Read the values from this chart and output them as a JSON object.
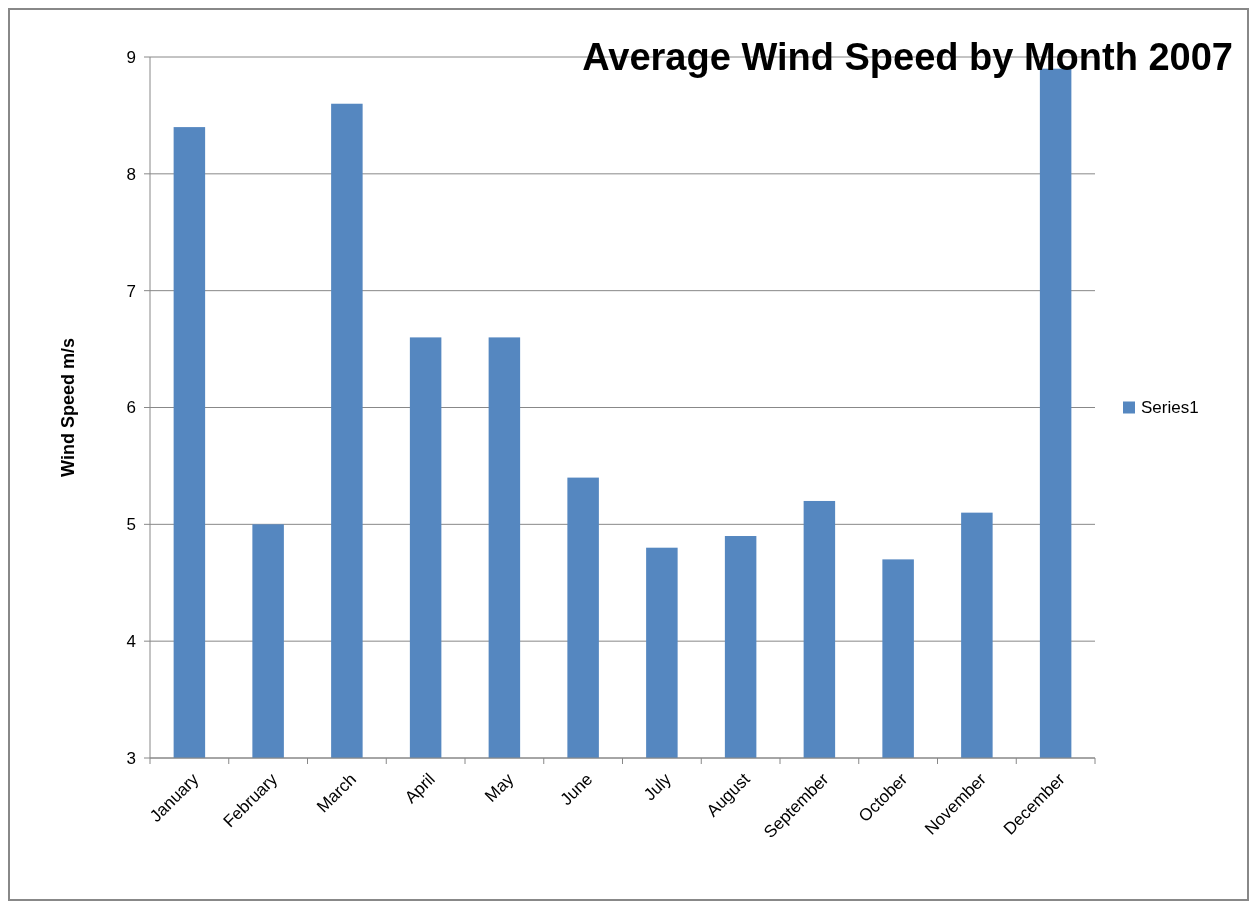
{
  "chart_data": {
    "type": "bar",
    "title": "Average Wind Speed by Month 2007",
    "ylabel": "Wind Speed m/s",
    "categories": [
      "January",
      "February",
      "March",
      "April",
      "May",
      "June",
      "July",
      "August",
      "September",
      "October",
      "November",
      "December"
    ],
    "series": [
      {
        "name": "Series1",
        "color": "#5587c0",
        "values": [
          8.4,
          5.0,
          8.6,
          6.6,
          6.6,
          5.4,
          4.8,
          4.9,
          5.2,
          4.7,
          5.1,
          8.9
        ]
      }
    ],
    "ylim": [
      3,
      9
    ],
    "yticks": [
      3,
      4,
      5,
      6,
      7,
      8,
      9
    ],
    "grid": "y",
    "legend": "right"
  }
}
